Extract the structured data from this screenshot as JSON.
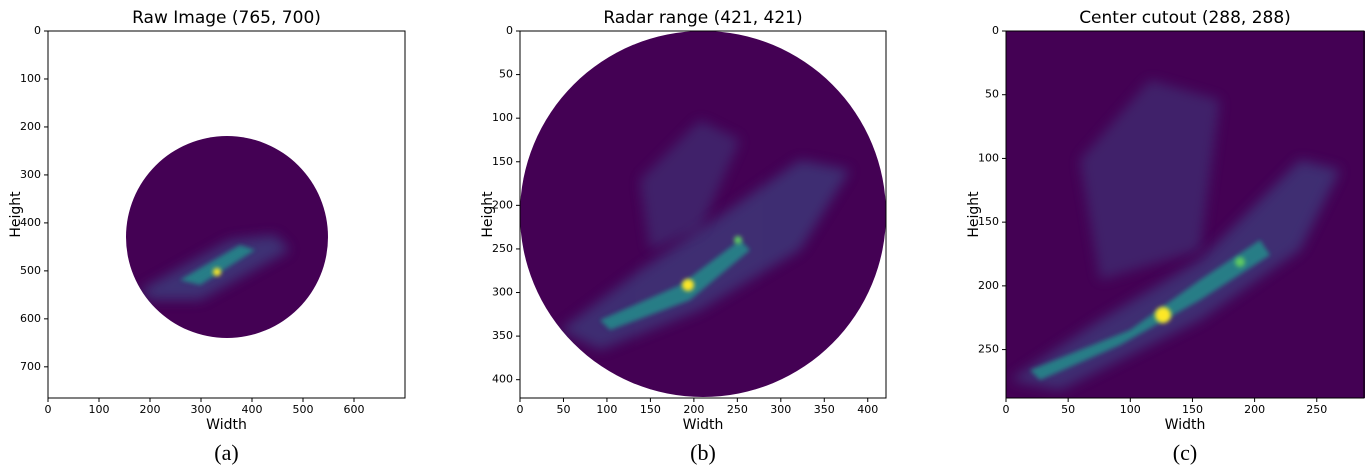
{
  "chart_data": [
    {
      "type": "image",
      "title": "Raw Image (765, 700)",
      "xlabel": "Width",
      "ylabel": "Height",
      "caption": "(a)",
      "xlim": [
        0,
        700
      ],
      "ylim": [
        765,
        0
      ],
      "xticks": [
        0,
        100,
        200,
        300,
        400,
        500,
        600
      ],
      "yticks": [
        0,
        100,
        200,
        300,
        400,
        500,
        600,
        700
      ]
    },
    {
      "type": "image",
      "title": "Radar range (421, 421)",
      "xlabel": "Width",
      "ylabel": "Height",
      "caption": "(b)",
      "xlim": [
        0,
        421
      ],
      "ylim": [
        421,
        0
      ],
      "xticks": [
        0,
        50,
        100,
        150,
        200,
        250,
        300,
        350,
        400
      ],
      "yticks": [
        0,
        50,
        100,
        150,
        200,
        250,
        300,
        350,
        400
      ]
    },
    {
      "type": "image",
      "title": "Center cutout (288, 288)",
      "xlabel": "Width",
      "ylabel": "Height",
      "caption": "(c)",
      "xlim": [
        0,
        288
      ],
      "ylim": [
        288,
        0
      ],
      "xticks": [
        0,
        50,
        100,
        150,
        200,
        250
      ],
      "yticks": [
        0,
        50,
        100,
        150,
        200,
        250
      ]
    }
  ]
}
